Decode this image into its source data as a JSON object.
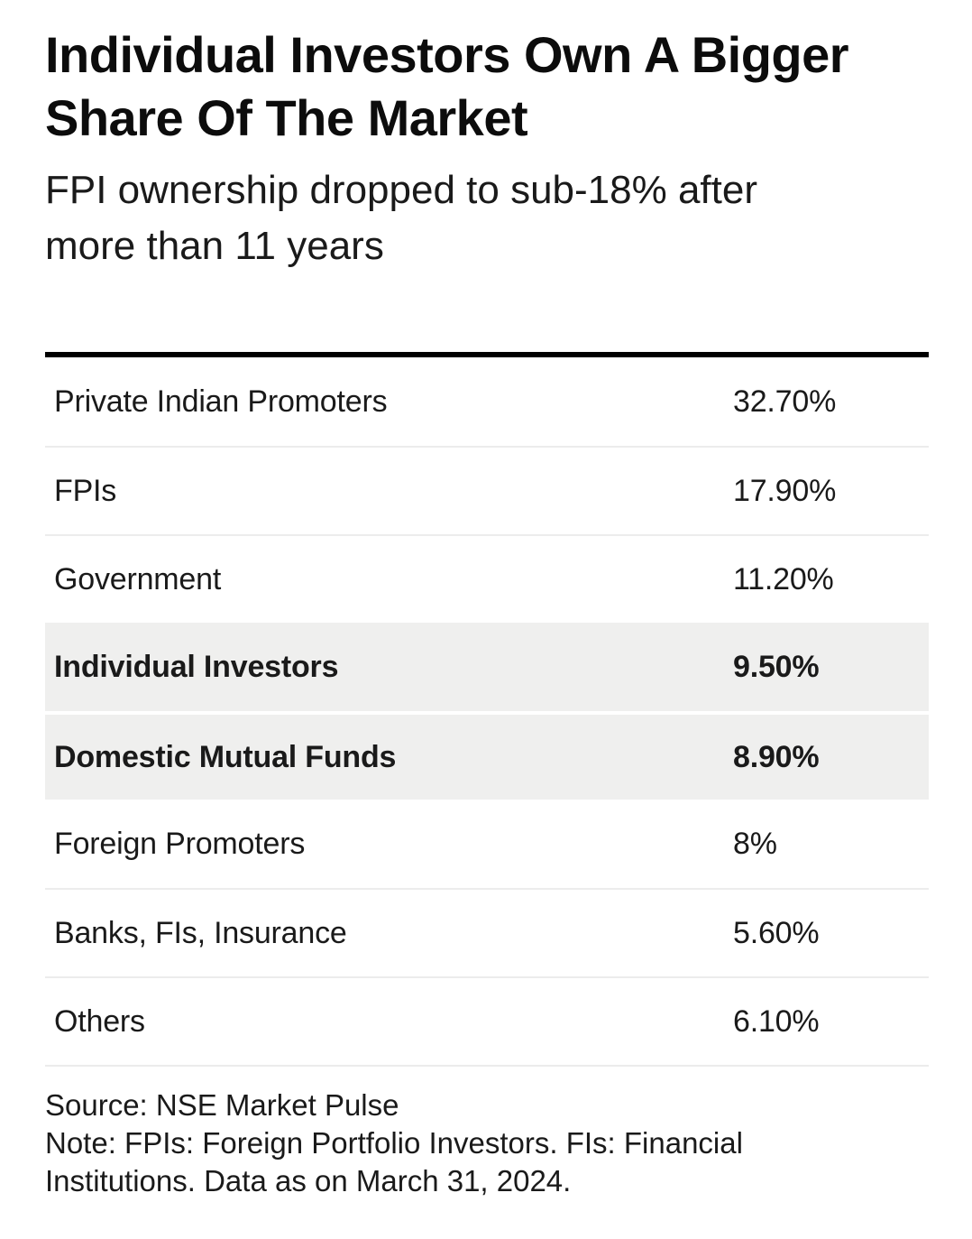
{
  "header": {
    "title_line1": "Individual Investors Own A Bigger",
    "title_line2": "Share Of The Market",
    "subtitle_line1": "FPI ownership dropped to sub-18% after",
    "subtitle_line2": "more than 11 years"
  },
  "chart_data": {
    "type": "table",
    "title": "Individual Investors Own A Bigger Share Of The Market",
    "subtitle": "FPI ownership dropped to sub-18% after more than 11 years",
    "categories": [
      "Private Indian Promoters",
      "FPIs",
      "Government",
      "Individual Investors",
      "Domestic Mutual Funds",
      "Foreign Promoters",
      "Banks, FIs, Insurance",
      "Others"
    ],
    "values": [
      32.7,
      17.9,
      11.2,
      9.5,
      8.9,
      8.0,
      5.6,
      6.1
    ],
    "value_labels": [
      "32.70%",
      "17.90%",
      "11.20%",
      "9.50%",
      "8.90%",
      "8%",
      "5.60%",
      "6.10%"
    ],
    "highlighted_categories": [
      "Individual Investors",
      "Domestic Mutual Funds"
    ],
    "layout": {
      "value_column": "left-aligned",
      "grid": "horizontal-separators",
      "top_rule": "thick-black"
    },
    "source": "Source: NSE Market Pulse",
    "note": "Note: FPIs: Foreign Portfolio Investors. FIs: Financial Institutions. Data as on March 31, 2024."
  },
  "footer": {
    "source": "Source: NSE Market Pulse",
    "note": "Note: FPIs: Foreign Portfolio Investors. FIs: Financial Institutions. Data as on March 31, 2024."
  },
  "colors": {
    "background": "#ffffff",
    "text": "#1a1a1a",
    "title_text": "#0c0c0c",
    "highlight_bg": "#efefee",
    "separator": "#ececec",
    "top_rule": "#000000"
  }
}
